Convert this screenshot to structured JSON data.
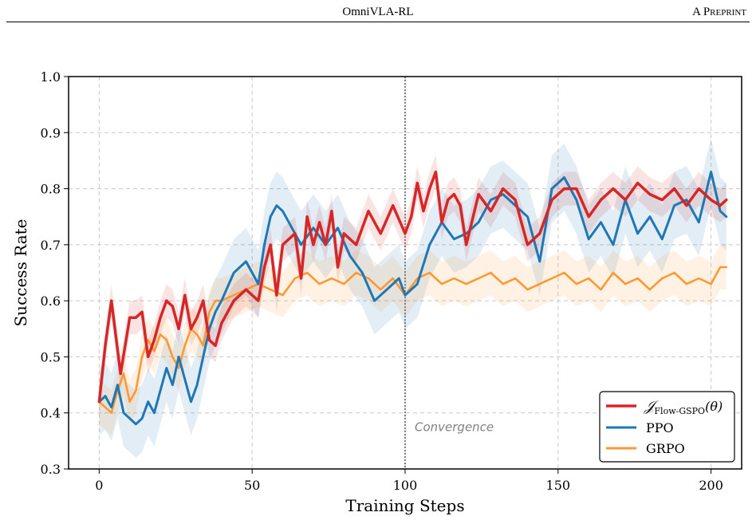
{
  "header": {
    "title": "OmniVLA-RL",
    "right_text": "A Preprint"
  },
  "chart_data": {
    "type": "line",
    "xlabel": "Training Steps",
    "ylabel": "Success Rate",
    "xlim": [
      -10,
      210
    ],
    "ylim": [
      0.3,
      1.0
    ],
    "xticks": [
      0,
      50,
      100,
      150,
      200
    ],
    "yticks": [
      0.3,
      0.4,
      0.5,
      0.6,
      0.7,
      0.8,
      0.9,
      1.0
    ],
    "xtick_labels": [
      "0",
      "50",
      "100",
      "150",
      "200"
    ],
    "ytick_labels": [
      "0.3",
      "0.4",
      "0.5",
      "0.6",
      "0.7",
      "0.8",
      "0.9",
      "1.0"
    ],
    "grid": true,
    "legend_position": "lower-right",
    "annotation": {
      "text": "Convergence",
      "x": 100,
      "y": 0.375
    },
    "vline": {
      "x": 100
    },
    "series": [
      {
        "name": "𝒥Flow-GSPO(θ)",
        "legend_main": "𝒥",
        "legend_sub": "Flow-GSPO",
        "legend_tail": "(θ)",
        "color": "#d62728",
        "band": 0.03,
        "x": [
          0,
          2,
          4,
          7,
          10,
          12,
          14,
          16,
          18,
          20,
          22,
          24,
          26,
          28,
          30,
          32,
          34,
          36,
          38,
          40,
          44,
          48,
          52,
          54,
          56,
          58,
          60,
          62,
          64,
          66,
          68,
          70,
          72,
          74,
          76,
          78,
          80,
          84,
          88,
          92,
          96,
          100,
          102,
          104,
          106,
          108,
          110,
          112,
          114,
          116,
          118,
          120,
          124,
          128,
          132,
          136,
          140,
          144,
          148,
          152,
          156,
          160,
          164,
          168,
          172,
          176,
          180,
          184,
          188,
          192,
          196,
          200,
          203,
          205
        ],
        "values": [
          0.42,
          0.52,
          0.6,
          0.47,
          0.57,
          0.57,
          0.58,
          0.5,
          0.53,
          0.57,
          0.6,
          0.59,
          0.55,
          0.61,
          0.55,
          0.57,
          0.6,
          0.53,
          0.52,
          0.56,
          0.6,
          0.62,
          0.6,
          0.66,
          0.7,
          0.61,
          0.7,
          0.71,
          0.72,
          0.64,
          0.75,
          0.7,
          0.74,
          0.7,
          0.76,
          0.66,
          0.72,
          0.7,
          0.76,
          0.72,
          0.77,
          0.72,
          0.75,
          0.81,
          0.76,
          0.8,
          0.83,
          0.74,
          0.78,
          0.79,
          0.77,
          0.7,
          0.79,
          0.76,
          0.8,
          0.78,
          0.7,
          0.72,
          0.78,
          0.8,
          0.8,
          0.75,
          0.78,
          0.8,
          0.78,
          0.81,
          0.79,
          0.78,
          0.8,
          0.77,
          0.8,
          0.78,
          0.77,
          0.78
        ]
      },
      {
        "name": "PPO",
        "color": "#1f77b4",
        "band": 0.06,
        "x": [
          0,
          2,
          4,
          6,
          8,
          10,
          12,
          14,
          16,
          18,
          20,
          22,
          24,
          26,
          28,
          30,
          32,
          34,
          36,
          38,
          40,
          44,
          48,
          52,
          54,
          56,
          58,
          60,
          62,
          64,
          66,
          70,
          74,
          78,
          82,
          86,
          90,
          94,
          98,
          100,
          102,
          104,
          108,
          112,
          116,
          120,
          124,
          128,
          132,
          136,
          140,
          144,
          148,
          152,
          156,
          160,
          164,
          168,
          172,
          176,
          180,
          184,
          188,
          192,
          196,
          200,
          203,
          205
        ],
        "values": [
          0.42,
          0.43,
          0.41,
          0.45,
          0.4,
          0.39,
          0.38,
          0.39,
          0.42,
          0.4,
          0.44,
          0.48,
          0.45,
          0.5,
          0.46,
          0.42,
          0.45,
          0.5,
          0.55,
          0.58,
          0.6,
          0.65,
          0.67,
          0.63,
          0.7,
          0.75,
          0.77,
          0.76,
          0.74,
          0.72,
          0.7,
          0.73,
          0.7,
          0.73,
          0.68,
          0.65,
          0.6,
          0.62,
          0.64,
          0.61,
          0.62,
          0.63,
          0.7,
          0.74,
          0.71,
          0.72,
          0.74,
          0.78,
          0.79,
          0.77,
          0.75,
          0.67,
          0.8,
          0.82,
          0.78,
          0.71,
          0.74,
          0.7,
          0.78,
          0.72,
          0.75,
          0.71,
          0.77,
          0.78,
          0.74,
          0.83,
          0.76,
          0.75
        ]
      },
      {
        "name": "GRPO",
        "color": "#ff9831",
        "band": 0.04,
        "x": [
          0,
          2,
          4,
          6,
          8,
          10,
          12,
          14,
          16,
          18,
          20,
          22,
          24,
          26,
          28,
          30,
          32,
          34,
          36,
          38,
          40,
          44,
          48,
          52,
          56,
          60,
          64,
          68,
          72,
          76,
          80,
          84,
          88,
          92,
          96,
          100,
          104,
          108,
          112,
          116,
          120,
          124,
          128,
          132,
          136,
          140,
          144,
          148,
          152,
          156,
          160,
          164,
          168,
          172,
          176,
          180,
          184,
          188,
          192,
          196,
          200,
          203,
          205
        ],
        "values": [
          0.42,
          0.41,
          0.4,
          0.44,
          0.47,
          0.42,
          0.44,
          0.5,
          0.53,
          0.51,
          0.54,
          0.53,
          0.5,
          0.48,
          0.52,
          0.55,
          0.54,
          0.52,
          0.58,
          0.6,
          0.6,
          0.61,
          0.62,
          0.63,
          0.62,
          0.61,
          0.64,
          0.65,
          0.63,
          0.64,
          0.63,
          0.65,
          0.64,
          0.62,
          0.64,
          0.61,
          0.64,
          0.65,
          0.63,
          0.64,
          0.63,
          0.64,
          0.65,
          0.63,
          0.64,
          0.62,
          0.63,
          0.64,
          0.65,
          0.63,
          0.64,
          0.62,
          0.65,
          0.63,
          0.64,
          0.62,
          0.64,
          0.65,
          0.63,
          0.64,
          0.63,
          0.66,
          0.66
        ]
      }
    ]
  }
}
